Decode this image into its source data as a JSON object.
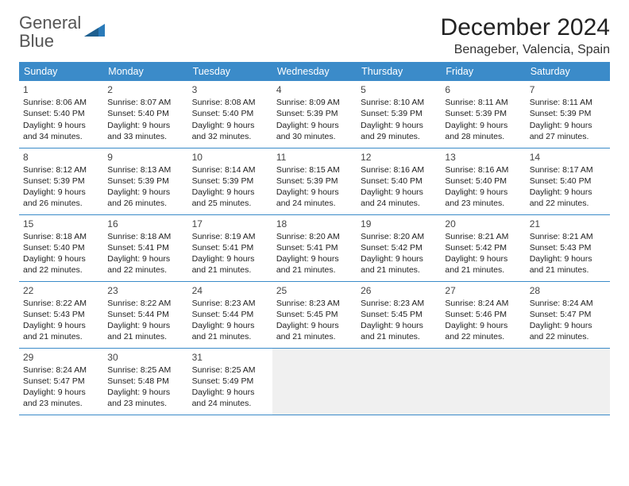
{
  "logo": {
    "general": "General",
    "blue": "Blue"
  },
  "title": "December 2024",
  "location": "Benageber, Valencia, Spain",
  "colors": {
    "header_bg": "#3b8bc9",
    "header_text": "#ffffff",
    "grid_line": "#3b8bc9",
    "body_text": "#222222",
    "empty_bg": "#f0f0f0",
    "logo_gray": "#555555",
    "logo_blue": "#2a7ab9"
  },
  "columns": [
    "Sunday",
    "Monday",
    "Tuesday",
    "Wednesday",
    "Thursday",
    "Friday",
    "Saturday"
  ],
  "weeks": [
    [
      {
        "day": "1",
        "sunrise": "8:06 AM",
        "sunset": "5:40 PM",
        "daylight": "9 hours and 34 minutes."
      },
      {
        "day": "2",
        "sunrise": "8:07 AM",
        "sunset": "5:40 PM",
        "daylight": "9 hours and 33 minutes."
      },
      {
        "day": "3",
        "sunrise": "8:08 AM",
        "sunset": "5:40 PM",
        "daylight": "9 hours and 32 minutes."
      },
      {
        "day": "4",
        "sunrise": "8:09 AM",
        "sunset": "5:39 PM",
        "daylight": "9 hours and 30 minutes."
      },
      {
        "day": "5",
        "sunrise": "8:10 AM",
        "sunset": "5:39 PM",
        "daylight": "9 hours and 29 minutes."
      },
      {
        "day": "6",
        "sunrise": "8:11 AM",
        "sunset": "5:39 PM",
        "daylight": "9 hours and 28 minutes."
      },
      {
        "day": "7",
        "sunrise": "8:11 AM",
        "sunset": "5:39 PM",
        "daylight": "9 hours and 27 minutes."
      }
    ],
    [
      {
        "day": "8",
        "sunrise": "8:12 AM",
        "sunset": "5:39 PM",
        "daylight": "9 hours and 26 minutes."
      },
      {
        "day": "9",
        "sunrise": "8:13 AM",
        "sunset": "5:39 PM",
        "daylight": "9 hours and 26 minutes."
      },
      {
        "day": "10",
        "sunrise": "8:14 AM",
        "sunset": "5:39 PM",
        "daylight": "9 hours and 25 minutes."
      },
      {
        "day": "11",
        "sunrise": "8:15 AM",
        "sunset": "5:39 PM",
        "daylight": "9 hours and 24 minutes."
      },
      {
        "day": "12",
        "sunrise": "8:16 AM",
        "sunset": "5:40 PM",
        "daylight": "9 hours and 24 minutes."
      },
      {
        "day": "13",
        "sunrise": "8:16 AM",
        "sunset": "5:40 PM",
        "daylight": "9 hours and 23 minutes."
      },
      {
        "day": "14",
        "sunrise": "8:17 AM",
        "sunset": "5:40 PM",
        "daylight": "9 hours and 22 minutes."
      }
    ],
    [
      {
        "day": "15",
        "sunrise": "8:18 AM",
        "sunset": "5:40 PM",
        "daylight": "9 hours and 22 minutes."
      },
      {
        "day": "16",
        "sunrise": "8:18 AM",
        "sunset": "5:41 PM",
        "daylight": "9 hours and 22 minutes."
      },
      {
        "day": "17",
        "sunrise": "8:19 AM",
        "sunset": "5:41 PM",
        "daylight": "9 hours and 21 minutes."
      },
      {
        "day": "18",
        "sunrise": "8:20 AM",
        "sunset": "5:41 PM",
        "daylight": "9 hours and 21 minutes."
      },
      {
        "day": "19",
        "sunrise": "8:20 AM",
        "sunset": "5:42 PM",
        "daylight": "9 hours and 21 minutes."
      },
      {
        "day": "20",
        "sunrise": "8:21 AM",
        "sunset": "5:42 PM",
        "daylight": "9 hours and 21 minutes."
      },
      {
        "day": "21",
        "sunrise": "8:21 AM",
        "sunset": "5:43 PM",
        "daylight": "9 hours and 21 minutes."
      }
    ],
    [
      {
        "day": "22",
        "sunrise": "8:22 AM",
        "sunset": "5:43 PM",
        "daylight": "9 hours and 21 minutes."
      },
      {
        "day": "23",
        "sunrise": "8:22 AM",
        "sunset": "5:44 PM",
        "daylight": "9 hours and 21 minutes."
      },
      {
        "day": "24",
        "sunrise": "8:23 AM",
        "sunset": "5:44 PM",
        "daylight": "9 hours and 21 minutes."
      },
      {
        "day": "25",
        "sunrise": "8:23 AM",
        "sunset": "5:45 PM",
        "daylight": "9 hours and 21 minutes."
      },
      {
        "day": "26",
        "sunrise": "8:23 AM",
        "sunset": "5:45 PM",
        "daylight": "9 hours and 21 minutes."
      },
      {
        "day": "27",
        "sunrise": "8:24 AM",
        "sunset": "5:46 PM",
        "daylight": "9 hours and 22 minutes."
      },
      {
        "day": "28",
        "sunrise": "8:24 AM",
        "sunset": "5:47 PM",
        "daylight": "9 hours and 22 minutes."
      }
    ],
    [
      {
        "day": "29",
        "sunrise": "8:24 AM",
        "sunset": "5:47 PM",
        "daylight": "9 hours and 23 minutes."
      },
      {
        "day": "30",
        "sunrise": "8:25 AM",
        "sunset": "5:48 PM",
        "daylight": "9 hours and 23 minutes."
      },
      {
        "day": "31",
        "sunrise": "8:25 AM",
        "sunset": "5:49 PM",
        "daylight": "9 hours and 24 minutes."
      },
      null,
      null,
      null,
      null
    ]
  ],
  "labels": {
    "sunrise": "Sunrise: ",
    "sunset": "Sunset: ",
    "daylight": "Daylight: "
  }
}
